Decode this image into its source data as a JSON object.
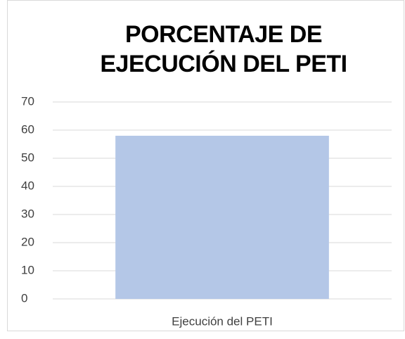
{
  "chart_data": {
    "type": "bar",
    "title": "PORCENTAJE DE EJECUCIÓN DEL PETI",
    "categories": [
      "Ejecución del PETI"
    ],
    "values": [
      58
    ],
    "color": "#b4c7e7",
    "ylim": [
      0,
      70
    ],
    "yticks": [
      0,
      10,
      20,
      30,
      40,
      50,
      60,
      70
    ],
    "grid": true
  }
}
